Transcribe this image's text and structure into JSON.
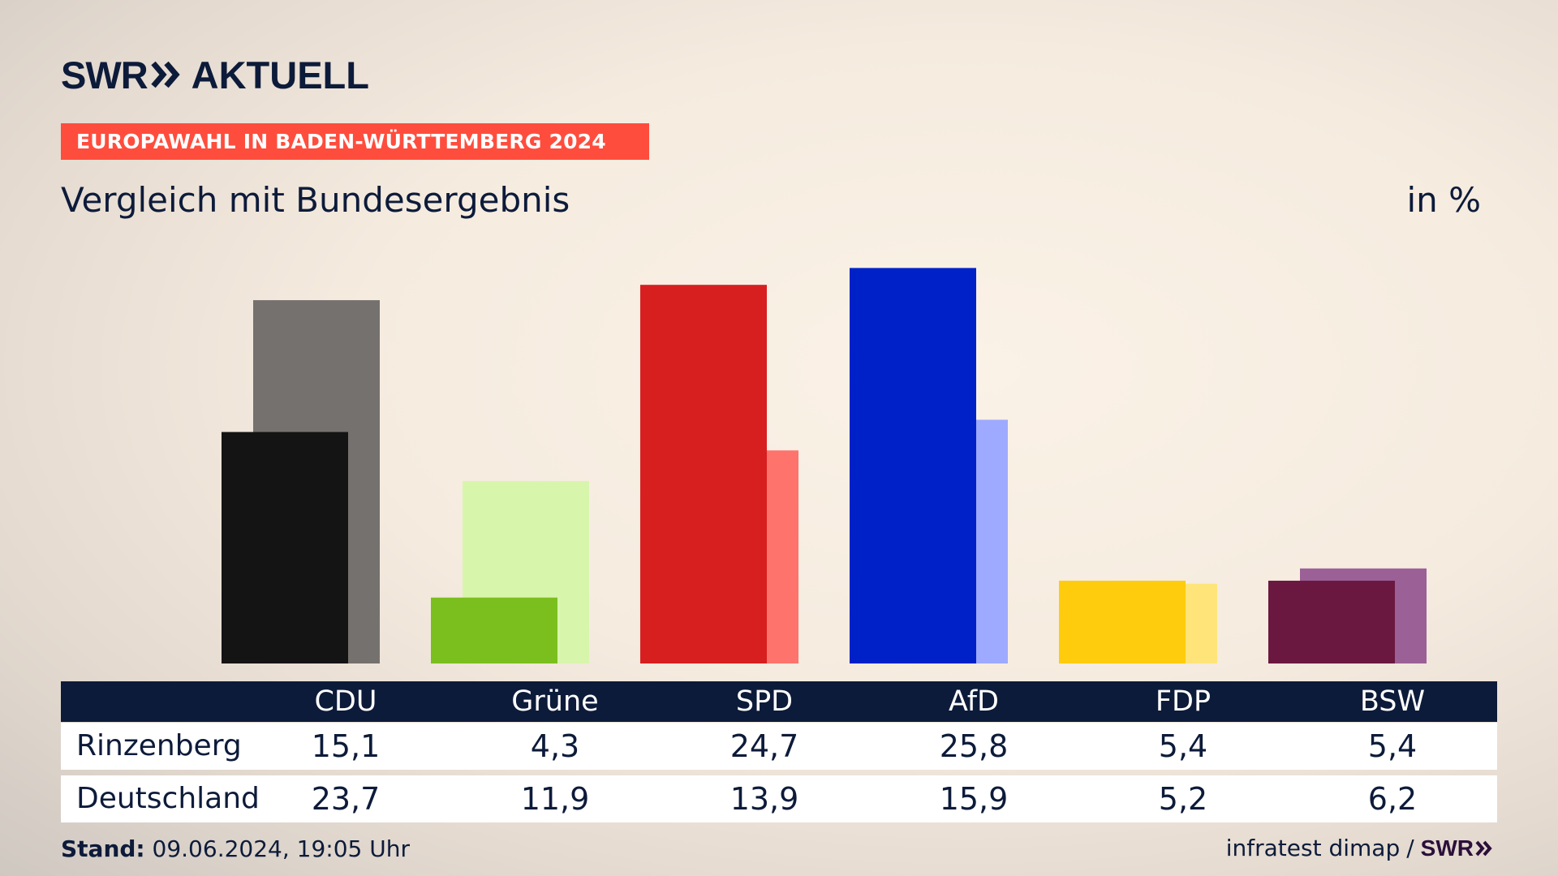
{
  "brand": {
    "logo_left": "SWR",
    "logo_right": "AKTUELL"
  },
  "banner": "EUROPAWAHL IN BADEN-WÜRTTEMBERG 2024",
  "subtitle": "Vergleich mit Bundesergebnis",
  "unit": "in %",
  "colors": {
    "CDU": [
      "#141414",
      "#75716e"
    ],
    "Grüne": [
      "#7bbf1e",
      "#d8f5ac"
    ],
    "SPD": [
      "#d71f1f",
      "#ff736d"
    ],
    "AfD": [
      "#0021c7",
      "#9eaaff"
    ],
    "FDP": [
      "#ffcc0d",
      "#ffe47a"
    ],
    "BSW": [
      "#6b1840",
      "#9b6197"
    ]
  },
  "chart_data": {
    "type": "bar",
    "categories": [
      "CDU",
      "Grüne",
      "SPD",
      "AfD",
      "FDP",
      "BSW"
    ],
    "series": [
      {
        "name": "Rinzenberg",
        "values": [
          15.1,
          4.3,
          24.7,
          25.8,
          5.4,
          5.4
        ]
      },
      {
        "name": "Deutschland",
        "values": [
          23.7,
          11.9,
          13.9,
          15.9,
          5.2,
          6.2
        ]
      }
    ],
    "title": "EUROPAWAHL IN BADEN-WÜRTTEMBERG 2024",
    "subtitle": "Vergleich mit Bundesergebnis",
    "ylabel": "in %",
    "ylim": [
      0,
      26
    ],
    "grid": false,
    "legend": "table-below"
  },
  "table": {
    "row_labels": [
      "Rinzenberg",
      "Deutschland"
    ],
    "rows": [
      [
        "15,1",
        "4,3",
        "24,7",
        "25,8",
        "5,4",
        "5,4"
      ],
      [
        "23,7",
        "11,9",
        "13,9",
        "15,9",
        "5,2",
        "6,2"
      ]
    ]
  },
  "footer": {
    "stand_label": "Stand:",
    "stand_value": "09.06.2024, 19:05 Uhr",
    "source": "infratest dimap",
    "source_sep": "/",
    "source_logo": "SWR"
  }
}
